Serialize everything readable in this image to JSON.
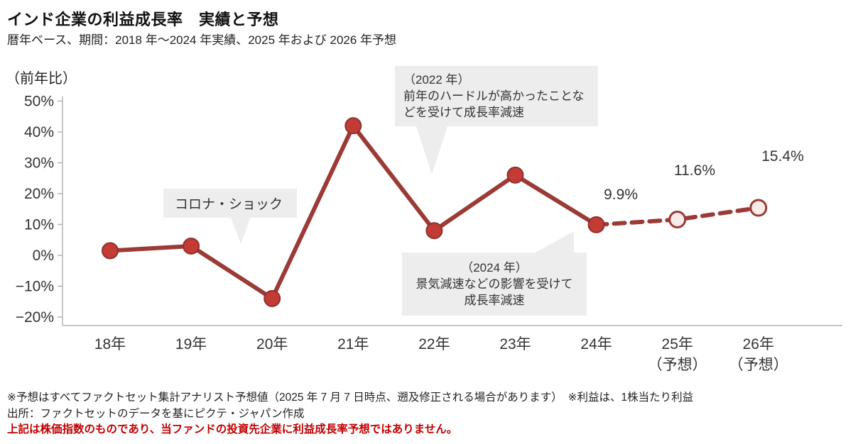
{
  "header": {
    "title": "インド企業の利益成長率　実績と予想",
    "subtitle": "暦年ベース、期間：2018 年～2024 年実績、2025 年および 2026 年予想",
    "axis_unit": "（前年比）"
  },
  "chart_data": {
    "type": "line",
    "categories": [
      {
        "label": "18年",
        "sub": ""
      },
      {
        "label": "19年",
        "sub": ""
      },
      {
        "label": "20年",
        "sub": ""
      },
      {
        "label": "21年",
        "sub": ""
      },
      {
        "label": "22年",
        "sub": ""
      },
      {
        "label": "23年",
        "sub": ""
      },
      {
        "label": "24年",
        "sub": ""
      },
      {
        "label": "25年",
        "sub": "（予想）"
      },
      {
        "label": "26年",
        "sub": "（予想）"
      }
    ],
    "values": [
      1.5,
      3,
      -14,
      42,
      8,
      26,
      9.9,
      11.6,
      15.4
    ],
    "actual_count": 7,
    "ylim": [
      -20,
      50
    ],
    "yticks": [
      50,
      40,
      30,
      20,
      10,
      0,
      -10,
      -20
    ],
    "ytick_suffix": "%",
    "point_labels": [
      "9.9%",
      "11.6%",
      "15.4%"
    ],
    "legend": "none",
    "grid": false,
    "colors": {
      "line": "#9c3a36",
      "marker_fill": "#c23b35",
      "marker_stroke": "#8e322e",
      "forecast_fill": "#f8ece9",
      "axis": "#b5b5b5",
      "tick_text": "#333333"
    }
  },
  "annotations": {
    "corona": {
      "text": "コロナ・ショック"
    },
    "y2022": {
      "line1": "（2022 年）",
      "line2": "前年のハードルが高かったことな",
      "line3": "どを受けて成長率減速"
    },
    "y2024": {
      "line1": "（2024 年）",
      "line2": "景気減速などの影響を受けて",
      "line3": "成長率減速"
    }
  },
  "footer": {
    "note1": "※予想はすべてファクトセット集計アナリスト予想値（2025 年 7 月 7 日時点、遡及修正される場合があります）　※利益は、1株当たり利益",
    "note2": "出所：ファクトセットのデータを基にピクテ・ジャパン作成",
    "note_red": "上記は株価指数のものであり、当ファンドの投資先企業に利益成長率予想ではありません。"
  }
}
